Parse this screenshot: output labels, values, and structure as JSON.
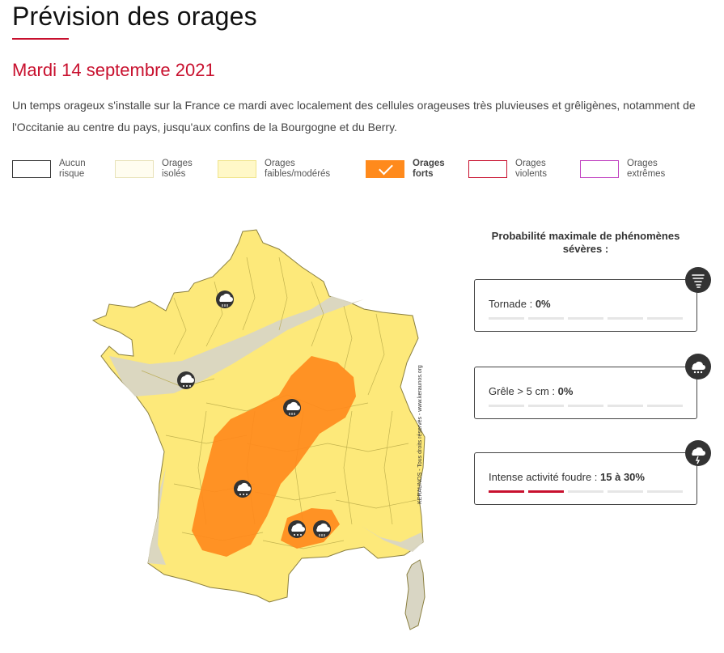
{
  "header": {
    "title": "Prévision des orages",
    "date": "Mardi 14 septembre 2021",
    "description": "Un temps orageux s'installe sur la France ce mardi avec localement des cellules orageuses très pluvieuses et grêligènes, notamment de l'Occitanie au centre du pays, jusqu'aux confins de la Bourgogne et du Berry."
  },
  "legend": [
    {
      "line1": "Aucun",
      "line2": "risque",
      "fill": "#ffffff",
      "border": "#333333",
      "selected": false
    },
    {
      "line1": "Orages",
      "line2": "isolés",
      "fill": "#fffdf0",
      "border": "#e8e2b8",
      "selected": false
    },
    {
      "line1": "Orages",
      "line2": "faibles/modérés",
      "fill": "#fff8c8",
      "border": "#f0e48a",
      "selected": false
    },
    {
      "line1": "Orages",
      "line2": "forts",
      "fill": "#ff8a1c",
      "border": "#ff8a1c",
      "selected": true
    },
    {
      "line1": "Orages",
      "line2": "violents",
      "fill": "#ffffff",
      "border": "#c8102e",
      "selected": false
    },
    {
      "line1": "Orages",
      "line2": "extrêmes",
      "fill": "#ffffff",
      "border": "#c040c0",
      "selected": false
    }
  ],
  "map": {
    "watermark": "KERAUNOS - Tous droits réservés - www.keraunos.org",
    "colors": {
      "yellow": "#fde97a",
      "grey": "#d9d6c4",
      "orange": "#ff8a1c",
      "border": "#8a7f40"
    },
    "icons": [
      "rain-icon",
      "hail-icon",
      "rain-icon",
      "hail-icon",
      "rain-icon"
    ]
  },
  "probabilities": {
    "title_line1": "Probabilité maximale de phénomènes",
    "title_line2": "sévères :",
    "cards": [
      {
        "label": "Tornade : ",
        "value": "0%",
        "icon": "tornado-icon",
        "level": 0
      },
      {
        "label": "Grêle > 5 cm : ",
        "value": "0%",
        "icon": "hail-icon",
        "level": 0
      },
      {
        "label": "Intense activité foudre : ",
        "value": "15 à 30%",
        "icon": "lightning-icon",
        "level": 2
      }
    ]
  }
}
